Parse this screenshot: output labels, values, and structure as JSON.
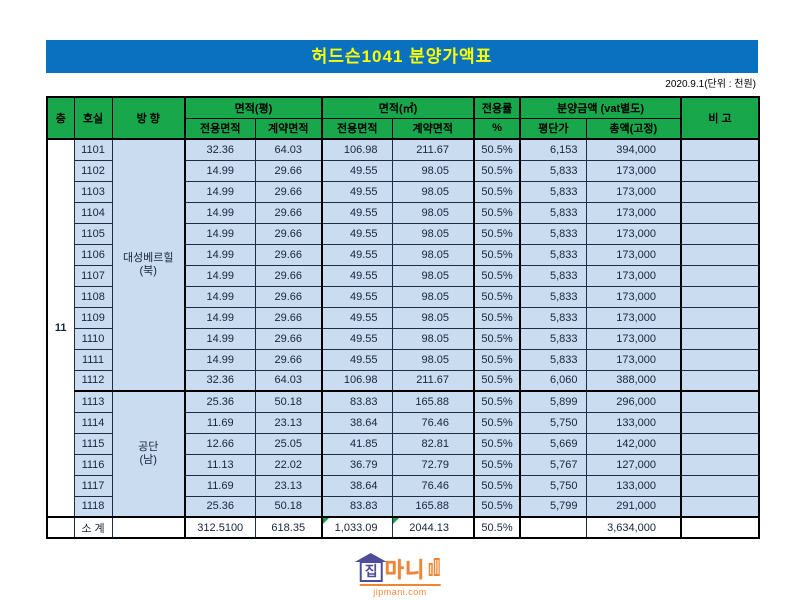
{
  "title": "허드슨1041 분양가액표",
  "date_note": "2020.9.1(단위 : 천원)",
  "columns": {
    "floor": "층",
    "room": "호실",
    "direction": "방 향",
    "area_py": "면적(평)",
    "area_m2": "면적(㎡)",
    "exclusive": "전용면적",
    "contract": "계약면적",
    "ratio": "전용률",
    "ratio_unit": "%",
    "price_group": "분양금액 (vat별도)",
    "price_per": "평단가",
    "total": "총액(고정)",
    "note": "비 고"
  },
  "floor_label": "11",
  "sections": [
    {
      "label": "대성베르힐\n(북)",
      "from": 0,
      "count": 12
    },
    {
      "label": "공단\n(남)",
      "from": 12,
      "count": 6
    }
  ],
  "rows": [
    {
      "room": "1101",
      "py_ex": "32.36",
      "py_ct": "64.03",
      "m2_ex": "106.98",
      "m2_ct": "211.67",
      "ratio": "50.5%",
      "per": "6,153",
      "total": "394,000",
      "note": ""
    },
    {
      "room": "1102",
      "py_ex": "14.99",
      "py_ct": "29.66",
      "m2_ex": "49.55",
      "m2_ct": "98.05",
      "ratio": "50.5%",
      "per": "5,833",
      "total": "173,000",
      "note": ""
    },
    {
      "room": "1103",
      "py_ex": "14.99",
      "py_ct": "29.66",
      "m2_ex": "49.55",
      "m2_ct": "98.05",
      "ratio": "50.5%",
      "per": "5,833",
      "total": "173,000",
      "note": ""
    },
    {
      "room": "1104",
      "py_ex": "14.99",
      "py_ct": "29.66",
      "m2_ex": "49.55",
      "m2_ct": "98.05",
      "ratio": "50.5%",
      "per": "5,833",
      "total": "173,000",
      "note": ""
    },
    {
      "room": "1105",
      "py_ex": "14.99",
      "py_ct": "29.66",
      "m2_ex": "49.55",
      "m2_ct": "98.05",
      "ratio": "50.5%",
      "per": "5,833",
      "total": "173,000",
      "note": ""
    },
    {
      "room": "1106",
      "py_ex": "14.99",
      "py_ct": "29.66",
      "m2_ex": "49.55",
      "m2_ct": "98.05",
      "ratio": "50.5%",
      "per": "5,833",
      "total": "173,000",
      "note": ""
    },
    {
      "room": "1107",
      "py_ex": "14.99",
      "py_ct": "29.66",
      "m2_ex": "49.55",
      "m2_ct": "98.05",
      "ratio": "50.5%",
      "per": "5,833",
      "total": "173,000",
      "note": ""
    },
    {
      "room": "1108",
      "py_ex": "14.99",
      "py_ct": "29.66",
      "m2_ex": "49.55",
      "m2_ct": "98.05",
      "ratio": "50.5%",
      "per": "5,833",
      "total": "173,000",
      "note": ""
    },
    {
      "room": "1109",
      "py_ex": "14.99",
      "py_ct": "29.66",
      "m2_ex": "49.55",
      "m2_ct": "98.05",
      "ratio": "50.5%",
      "per": "5,833",
      "total": "173,000",
      "note": ""
    },
    {
      "room": "1110",
      "py_ex": "14.99",
      "py_ct": "29.66",
      "m2_ex": "49.55",
      "m2_ct": "98.05",
      "ratio": "50.5%",
      "per": "5,833",
      "total": "173,000",
      "note": ""
    },
    {
      "room": "1111",
      "py_ex": "14.99",
      "py_ct": "29.66",
      "m2_ex": "49.55",
      "m2_ct": "98.05",
      "ratio": "50.5%",
      "per": "5,833",
      "total": "173,000",
      "note": ""
    },
    {
      "room": "1112",
      "py_ex": "32.36",
      "py_ct": "64.03",
      "m2_ex": "106.98",
      "m2_ct": "211.67",
      "ratio": "50.5%",
      "per": "6,060",
      "total": "388,000",
      "note": ""
    },
    {
      "room": "1113",
      "py_ex": "25.36",
      "py_ct": "50.18",
      "m2_ex": "83.83",
      "m2_ct": "165.88",
      "ratio": "50.5%",
      "per": "5,899",
      "total": "296,000",
      "note": ""
    },
    {
      "room": "1114",
      "py_ex": "11.69",
      "py_ct": "23.13",
      "m2_ex": "38.64",
      "m2_ct": "76.46",
      "ratio": "50.5%",
      "per": "5,750",
      "total": "133,000",
      "note": ""
    },
    {
      "room": "1115",
      "py_ex": "12.66",
      "py_ct": "25.05",
      "m2_ex": "41.85",
      "m2_ct": "82.81",
      "ratio": "50.5%",
      "per": "5,669",
      "total": "142,000",
      "note": ""
    },
    {
      "room": "1116",
      "py_ex": "11.13",
      "py_ct": "22.02",
      "m2_ex": "36.79",
      "m2_ct": "72.79",
      "ratio": "50.5%",
      "per": "5,767",
      "total": "127,000",
      "note": ""
    },
    {
      "room": "1117",
      "py_ex": "11.69",
      "py_ct": "23.13",
      "m2_ex": "38.64",
      "m2_ct": "76.46",
      "ratio": "50.5%",
      "per": "5,750",
      "total": "133,000",
      "note": ""
    },
    {
      "room": "1118",
      "py_ex": "25.36",
      "py_ct": "50.18",
      "m2_ex": "83.83",
      "m2_ct": "165.88",
      "ratio": "50.5%",
      "per": "5,799",
      "total": "291,000",
      "note": ""
    }
  ],
  "subtotal": {
    "label": "소 계",
    "py_ex": "312.5100",
    "py_ct": "618.35",
    "m2_ex": "1,033.09",
    "m2_ct": "2044.13",
    "ratio": "50.5%",
    "per": "",
    "total": "3,634,000",
    "note": ""
  },
  "logo": {
    "jip": "집",
    "mani": "마니",
    "domain": "jipmani.com"
  },
  "colors": {
    "title_bg": "#0a71c0",
    "title_text": "#ffff00",
    "header_bg": "#18a84b",
    "cell_bg": "#cadcf0",
    "error_triangle": "#1e9b47",
    "logo_orange": "#ef8633",
    "logo_indigo": "#4d4d99"
  }
}
